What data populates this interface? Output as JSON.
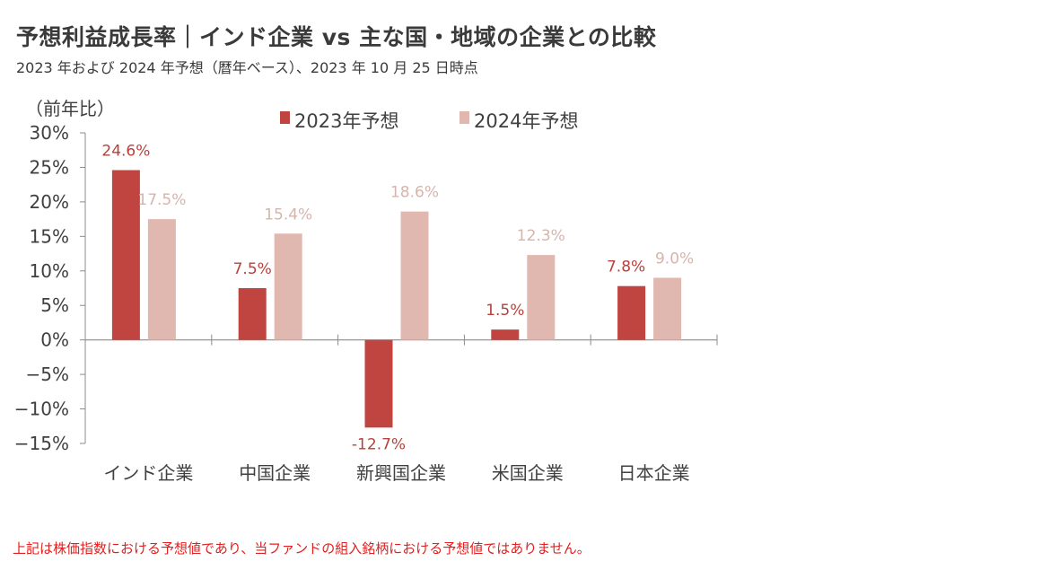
{
  "header": {
    "title": "予想利益成長率｜インド企業 vs 主な国・地域の企業との比較",
    "subtitle": "2023 年および 2024 年予想（暦年ベース）、2023 年 10 月 25 日時点"
  },
  "footnote": "上記は株価指数における予想値であり、当ファンドの組入銘柄における予想値ではありません。",
  "colors": {
    "series_2023": "#c0443f",
    "series_2024": "#e0b8b0",
    "label_2023": "#b8403b",
    "label_2024": "#d6b4ad",
    "axis": "#8c8c8c"
  },
  "chart_data": {
    "type": "bar",
    "title": "予想利益成長率｜インド企業 vs 主な国・地域の企業との比較",
    "ylabel": "（前年比）",
    "xlabel": "",
    "categories": [
      "インド企業",
      "中国企業",
      "新興国企業",
      "米国企業",
      "日本企業"
    ],
    "series": [
      {
        "name": "2023年予想",
        "values": [
          24.6,
          7.5,
          -12.7,
          1.5,
          7.8
        ],
        "labels": [
          "24.6%",
          "7.5%",
          "-12.7%",
          "1.5%",
          "7.8%"
        ]
      },
      {
        "name": "2024年予想",
        "values": [
          17.5,
          15.4,
          18.6,
          12.3,
          9.0
        ],
        "labels": [
          "17.5%",
          "15.4%",
          "18.6%",
          "12.3%",
          "9.0%"
        ]
      }
    ],
    "ylim": [
      -15,
      30
    ],
    "yticks": [
      30,
      25,
      20,
      15,
      10,
      5,
      0,
      -5,
      -10,
      -15
    ],
    "ytick_labels": [
      "30%",
      "25%",
      "20%",
      "15%",
      "10%",
      "5%",
      "0%",
      "−5%",
      "−10%",
      "−15%"
    ],
    "legend_position": "top-center",
    "grid": false
  }
}
